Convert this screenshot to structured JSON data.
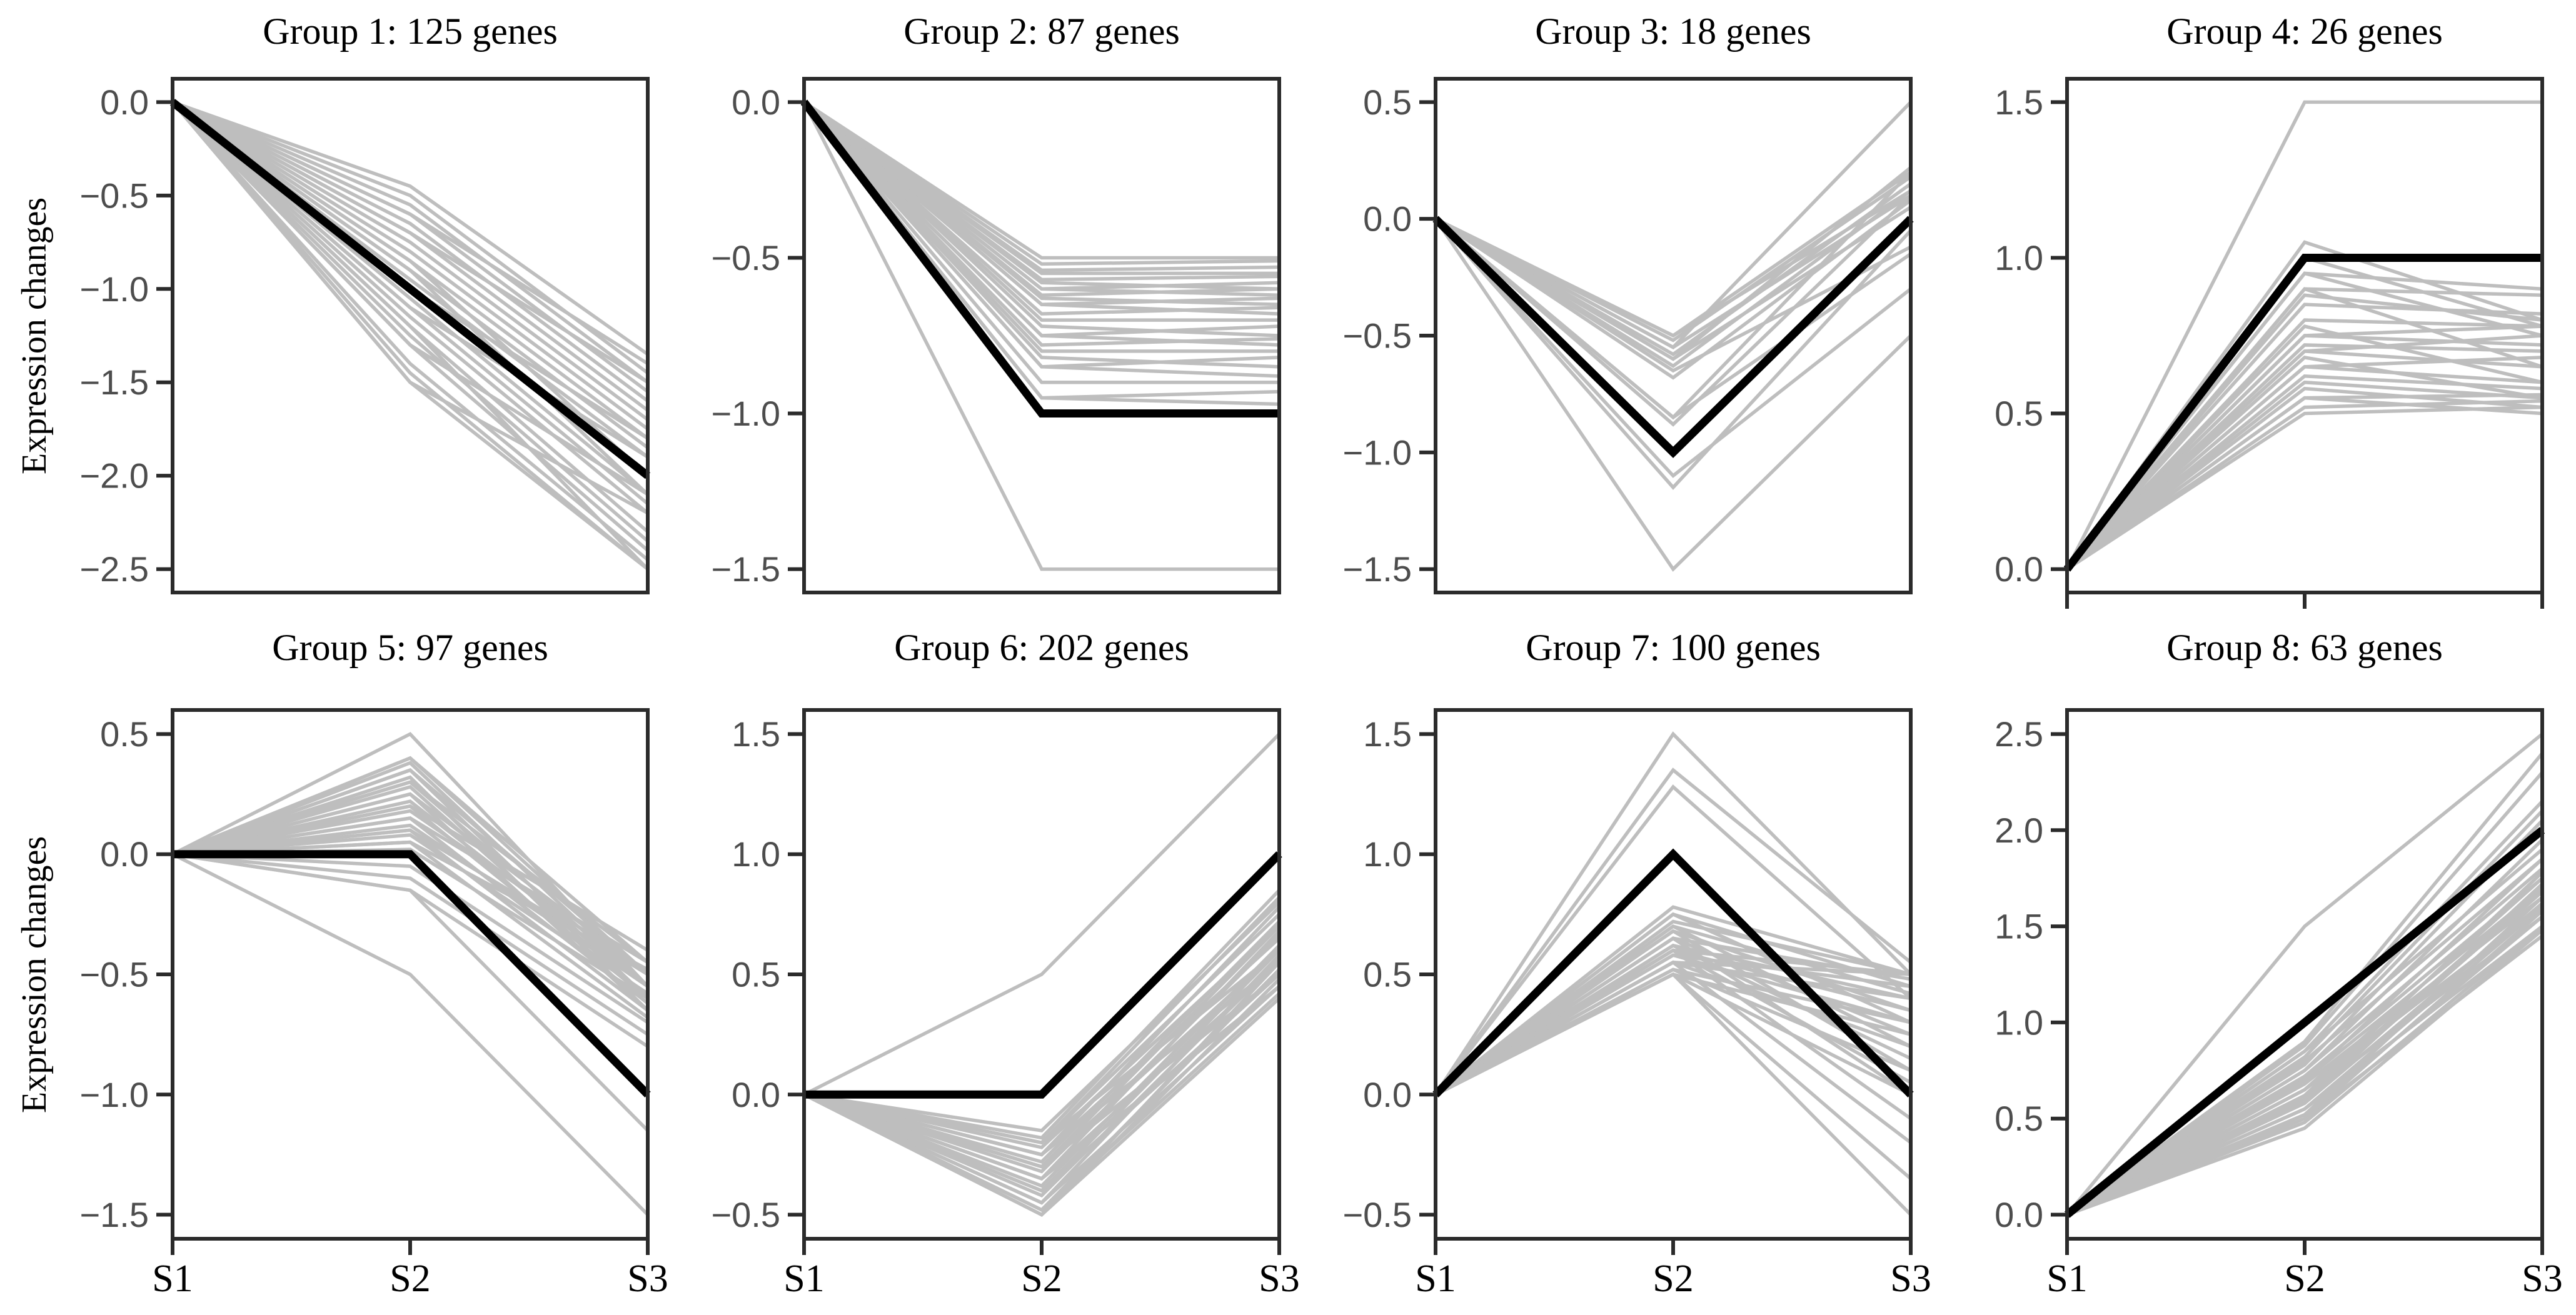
{
  "figure": {
    "ylabel": "Expression changes",
    "x_labels": [
      "S1",
      "S2",
      "S3"
    ],
    "colors": {
      "gene_line": "#BEBEBE",
      "medoid_line": "#000000",
      "axis": "#2B2B2B",
      "tick_label": "#4D4D4D",
      "text": "#000000",
      "background": "#FFFFFF"
    }
  },
  "chart_data": [
    {
      "type": "line",
      "title": "Group 1: 125 genes",
      "group": 1,
      "n_genes": 125,
      "categories": [
        "S1",
        "S2",
        "S3"
      ],
      "yticks": [
        0.0,
        -0.5,
        -1.0,
        -1.5,
        -2.0,
        -2.5
      ],
      "ylim": [
        -2.625,
        0.125
      ],
      "show_x_ticks": false,
      "medoid": [
        0,
        -1.0,
        -2.0
      ],
      "genes": [
        [
          0,
          -0.45,
          -1.35
        ],
        [
          0,
          -0.5,
          -1.45
        ],
        [
          0,
          -0.55,
          -1.5
        ],
        [
          0,
          -0.6,
          -1.55
        ],
        [
          0,
          -0.6,
          -1.4
        ],
        [
          0,
          -0.65,
          -1.6
        ],
        [
          0,
          -0.7,
          -1.65
        ],
        [
          0,
          -0.7,
          -1.5
        ],
        [
          0,
          -0.75,
          -1.7
        ],
        [
          0,
          -0.8,
          -1.75
        ],
        [
          0,
          -0.85,
          -1.8
        ],
        [
          0,
          -0.85,
          -2.0
        ],
        [
          0,
          -0.9,
          -1.85
        ],
        [
          0,
          -0.9,
          -2.1
        ],
        [
          0,
          -0.95,
          -1.9
        ],
        [
          0,
          -1.0,
          -2.0
        ],
        [
          0,
          -1.0,
          -1.8
        ],
        [
          0,
          -1.05,
          -2.1
        ],
        [
          0,
          -1.1,
          -2.15
        ],
        [
          0,
          -1.1,
          -1.9
        ],
        [
          0,
          -1.15,
          -2.2
        ],
        [
          0,
          -1.2,
          -2.3
        ],
        [
          0,
          -1.2,
          -2.5
        ],
        [
          0,
          -1.25,
          -2.35
        ],
        [
          0,
          -1.3,
          -2.4
        ],
        [
          0,
          -1.3,
          -2.1
        ],
        [
          0,
          -1.4,
          -2.45
        ],
        [
          0,
          -1.45,
          -2.5
        ],
        [
          0,
          -1.5,
          -2.5
        ],
        [
          0,
          -1.5,
          -2.2
        ]
      ]
    },
    {
      "type": "line",
      "title": "Group 2: 87 genes",
      "group": 2,
      "n_genes": 87,
      "categories": [
        "S1",
        "S2",
        "S3"
      ],
      "yticks": [
        0.0,
        -0.5,
        -1.0,
        -1.5
      ],
      "ylim": [
        -1.575,
        0.075
      ],
      "show_x_ticks": false,
      "medoid": [
        0,
        -1.0,
        -1.0
      ],
      "genes": [
        [
          0,
          -0.5,
          -0.5
        ],
        [
          0,
          -0.52,
          -0.51
        ],
        [
          0,
          -0.54,
          -0.53
        ],
        [
          0,
          -0.55,
          -0.55
        ],
        [
          0,
          -0.57,
          -0.56
        ],
        [
          0,
          -0.58,
          -0.6
        ],
        [
          0,
          -0.6,
          -0.58
        ],
        [
          0,
          -0.6,
          -0.62
        ],
        [
          0,
          -0.62,
          -0.6
        ],
        [
          0,
          -0.63,
          -0.65
        ],
        [
          0,
          -0.65,
          -0.63
        ],
        [
          0,
          -0.65,
          -0.68
        ],
        [
          0,
          -0.68,
          -0.66
        ],
        [
          0,
          -0.7,
          -0.7
        ],
        [
          0,
          -0.72,
          -0.75
        ],
        [
          0,
          -0.75,
          -0.72
        ],
        [
          0,
          -0.75,
          -0.78
        ],
        [
          0,
          -0.78,
          -0.76
        ],
        [
          0,
          -0.8,
          -0.8
        ],
        [
          0,
          -0.82,
          -0.85
        ],
        [
          0,
          -0.85,
          -0.82
        ],
        [
          0,
          -0.85,
          -0.88
        ],
        [
          0,
          -0.9,
          -0.9
        ],
        [
          0,
          -0.95,
          -0.93
        ],
        [
          0,
          -0.95,
          -0.97
        ],
        [
          0,
          -1.5,
          -1.5
        ]
      ]
    },
    {
      "type": "line",
      "title": "Group 3: 18 genes",
      "group": 3,
      "n_genes": 18,
      "categories": [
        "S1",
        "S2",
        "S3"
      ],
      "yticks": [
        0.5,
        0.0,
        -0.5,
        -1.0,
        -1.5
      ],
      "ylim": [
        -1.6,
        0.6
      ],
      "show_x_ticks": false,
      "medoid": [
        0,
        -1.0,
        0.0
      ],
      "genes": [
        [
          0,
          -0.5,
          0.2
        ],
        [
          0,
          -0.5,
          0.12
        ],
        [
          0,
          -0.52,
          0.18
        ],
        [
          0,
          -0.55,
          0.5
        ],
        [
          0,
          -0.55,
          0.1
        ],
        [
          0,
          -0.58,
          0.15
        ],
        [
          0,
          -0.6,
          0.05
        ],
        [
          0,
          -0.6,
          0.22
        ],
        [
          0,
          -0.63,
          0.12
        ],
        [
          0,
          -0.65,
          -0.12
        ],
        [
          0,
          -0.68,
          0.08
        ],
        [
          0,
          -0.85,
          0.2
        ],
        [
          0,
          -0.85,
          -0.15
        ],
        [
          0,
          -0.88,
          0.1
        ],
        [
          0,
          -1.1,
          -0.3
        ],
        [
          0,
          -1.15,
          -0.05
        ],
        [
          0,
          -1.5,
          -0.5
        ]
      ]
    },
    {
      "type": "line",
      "title": "Group 4: 26 genes",
      "group": 4,
      "n_genes": 26,
      "categories": [
        "S1",
        "S2",
        "S3"
      ],
      "yticks": [
        0.0,
        0.5,
        1.0,
        1.5
      ],
      "ylim": [
        -0.075,
        1.575
      ],
      "show_x_ticks": true,
      "medoid": [
        0,
        1.0,
        1.0
      ],
      "genes": [
        [
          0,
          1.5,
          1.5
        ],
        [
          0,
          1.05,
          0.8
        ],
        [
          0,
          1.0,
          0.78
        ],
        [
          0,
          0.95,
          0.9
        ],
        [
          0,
          0.95,
          0.75
        ],
        [
          0,
          0.9,
          0.88
        ],
        [
          0,
          0.9,
          0.65
        ],
        [
          0,
          0.88,
          0.8
        ],
        [
          0,
          0.85,
          0.82
        ],
        [
          0,
          0.8,
          0.78
        ],
        [
          0,
          0.78,
          0.6
        ],
        [
          0,
          0.75,
          0.72
        ],
        [
          0,
          0.75,
          0.78
        ],
        [
          0,
          0.72,
          0.7
        ],
        [
          0,
          0.7,
          0.65
        ],
        [
          0,
          0.7,
          0.75
        ],
        [
          0,
          0.68,
          0.55
        ],
        [
          0,
          0.65,
          0.68
        ],
        [
          0,
          0.65,
          0.6
        ],
        [
          0,
          0.62,
          0.58
        ],
        [
          0,
          0.6,
          0.55
        ],
        [
          0,
          0.58,
          0.52
        ],
        [
          0,
          0.55,
          0.56
        ],
        [
          0,
          0.55,
          0.5
        ],
        [
          0,
          0.52,
          0.54
        ],
        [
          0,
          0.5,
          0.52
        ]
      ]
    },
    {
      "type": "line",
      "title": "Group 5: 97 genes",
      "group": 5,
      "n_genes": 97,
      "categories": [
        "S1",
        "S2",
        "S3"
      ],
      "yticks": [
        0.5,
        0.0,
        -0.5,
        -1.0,
        -1.5
      ],
      "ylim": [
        -1.6,
        0.6
      ],
      "show_x_ticks": true,
      "medoid": [
        0,
        0.0,
        -1.0
      ],
      "genes": [
        [
          0,
          0.5,
          -0.55
        ],
        [
          0,
          0.4,
          -0.5
        ],
        [
          0,
          0.4,
          -0.45
        ],
        [
          0,
          0.38,
          -0.55
        ],
        [
          0,
          0.35,
          -0.6
        ],
        [
          0,
          0.35,
          -0.5
        ],
        [
          0,
          0.32,
          -0.65
        ],
        [
          0,
          0.3,
          -0.45
        ],
        [
          0,
          0.3,
          -0.55
        ],
        [
          0,
          0.28,
          -0.6
        ],
        [
          0,
          0.25,
          -0.5
        ],
        [
          0,
          0.25,
          -0.65
        ],
        [
          0,
          0.22,
          -0.55
        ],
        [
          0,
          0.2,
          -0.4
        ],
        [
          0,
          0.2,
          -0.6
        ],
        [
          0,
          0.18,
          -0.5
        ],
        [
          0,
          0.15,
          -0.45
        ],
        [
          0,
          0.15,
          -0.62
        ],
        [
          0,
          0.12,
          -0.55
        ],
        [
          0,
          0.1,
          -0.5
        ],
        [
          0,
          0.1,
          -0.65
        ],
        [
          0,
          0.08,
          -0.58
        ],
        [
          0,
          0.05,
          -0.48
        ],
        [
          0,
          0.05,
          -0.68
        ],
        [
          0,
          0.02,
          -0.6
        ],
        [
          0,
          -0.05,
          -0.7
        ],
        [
          0,
          -0.1,
          -0.75
        ],
        [
          0,
          -0.15,
          -0.8
        ],
        [
          0,
          -0.15,
          -1.15
        ],
        [
          0,
          -0.5,
          -1.5
        ]
      ]
    },
    {
      "type": "line",
      "title": "Group 6: 202 genes",
      "group": 6,
      "n_genes": 202,
      "categories": [
        "S1",
        "S2",
        "S3"
      ],
      "yticks": [
        1.5,
        1.0,
        0.5,
        0.0,
        -0.5
      ],
      "ylim": [
        -0.6,
        1.6
      ],
      "show_x_ticks": true,
      "medoid": [
        0,
        0.0,
        1.0
      ],
      "genes": [
        [
          0,
          -0.15,
          0.8
        ],
        [
          0,
          -0.18,
          0.85
        ],
        [
          0,
          -0.2,
          0.75
        ],
        [
          0,
          -0.2,
          0.82
        ],
        [
          0,
          -0.22,
          0.7
        ],
        [
          0,
          -0.25,
          0.78
        ],
        [
          0,
          -0.25,
          0.65
        ],
        [
          0,
          -0.28,
          0.72
        ],
        [
          0,
          -0.3,
          0.6
        ],
        [
          0,
          -0.3,
          0.7
        ],
        [
          0,
          -0.32,
          0.66
        ],
        [
          0,
          -0.35,
          0.55
        ],
        [
          0,
          -0.35,
          0.68
        ],
        [
          0,
          -0.38,
          0.62
        ],
        [
          0,
          -0.4,
          0.5
        ],
        [
          0,
          -0.4,
          0.6
        ],
        [
          0,
          -0.42,
          0.56
        ],
        [
          0,
          -0.45,
          0.45
        ],
        [
          0,
          -0.45,
          0.58
        ],
        [
          0,
          -0.48,
          0.52
        ],
        [
          0,
          -0.5,
          0.4
        ],
        [
          0,
          -0.5,
          0.48
        ],
        [
          0,
          -0.5,
          0.55
        ],
        [
          0,
          -0.48,
          0.42
        ],
        [
          0,
          -0.35,
          0.45
        ],
        [
          0,
          -0.3,
          0.5
        ],
        [
          0,
          -0.25,
          0.55
        ],
        [
          0,
          -0.2,
          0.6
        ],
        [
          0,
          0.5,
          1.5
        ]
      ]
    },
    {
      "type": "line",
      "title": "Group 7: 100 genes",
      "group": 7,
      "n_genes": 100,
      "categories": [
        "S1",
        "S2",
        "S3"
      ],
      "yticks": [
        1.5,
        1.0,
        0.5,
        0.0,
        -0.5
      ],
      "ylim": [
        -0.6,
        1.6
      ],
      "show_x_ticks": true,
      "medoid": [
        0,
        1.0,
        0.0
      ],
      "genes": [
        [
          0,
          1.5,
          0.5
        ],
        [
          0,
          1.35,
          0.55
        ],
        [
          0,
          1.28,
          0.4
        ],
        [
          0,
          0.78,
          0.5
        ],
        [
          0,
          0.75,
          0.45
        ],
        [
          0,
          0.75,
          0.3
        ],
        [
          0,
          0.72,
          0.5
        ],
        [
          0,
          0.7,
          0.2
        ],
        [
          0,
          0.7,
          0.42
        ],
        [
          0,
          0.68,
          0.35
        ],
        [
          0,
          0.68,
          0.1
        ],
        [
          0,
          0.65,
          0.48
        ],
        [
          0,
          0.65,
          0.25
        ],
        [
          0,
          0.65,
          0.0
        ],
        [
          0,
          0.62,
          0.4
        ],
        [
          0,
          0.62,
          0.15
        ],
        [
          0,
          0.6,
          0.35
        ],
        [
          0,
          0.6,
          0.05
        ],
        [
          0,
          0.6,
          -0.1
        ],
        [
          0,
          0.58,
          0.3
        ],
        [
          0,
          0.58,
          0.45
        ],
        [
          0,
          0.55,
          0.2
        ],
        [
          0,
          0.55,
          -0.2
        ],
        [
          0,
          0.55,
          0.4
        ],
        [
          0,
          0.52,
          0.1
        ],
        [
          0,
          0.52,
          0.3
        ],
        [
          0,
          0.5,
          0.0
        ],
        [
          0,
          0.5,
          0.25
        ],
        [
          0,
          0.5,
          -0.35
        ],
        [
          0,
          0.5,
          -0.5
        ],
        [
          0,
          0.55,
          0.5
        ],
        [
          0,
          0.6,
          0.5
        ]
      ]
    },
    {
      "type": "line",
      "title": "Group 8: 63 genes",
      "group": 8,
      "n_genes": 63,
      "categories": [
        "S1",
        "S2",
        "S3"
      ],
      "yticks": [
        0.0,
        0.5,
        1.0,
        1.5,
        2.0,
        2.5
      ],
      "ylim": [
        -0.125,
        2.625
      ],
      "show_x_ticks": true,
      "medoid": [
        0,
        1.0,
        2.0
      ],
      "genes": [
        [
          0,
          1.5,
          2.5
        ],
        [
          0,
          0.9,
          2.4
        ],
        [
          0,
          0.88,
          2.3
        ],
        [
          0,
          0.85,
          2.15
        ],
        [
          0,
          0.85,
          1.9
        ],
        [
          0,
          0.82,
          2.1
        ],
        [
          0,
          0.8,
          1.85
        ],
        [
          0,
          0.78,
          2.05
        ],
        [
          0,
          0.75,
          1.8
        ],
        [
          0,
          0.75,
          1.95
        ],
        [
          0,
          0.72,
          1.75
        ],
        [
          0,
          0.7,
          1.7
        ],
        [
          0,
          0.7,
          1.85
        ],
        [
          0,
          0.68,
          1.65
        ],
        [
          0,
          0.65,
          1.6
        ],
        [
          0,
          0.65,
          1.75
        ],
        [
          0,
          0.62,
          1.7
        ],
        [
          0,
          0.6,
          1.55
        ],
        [
          0,
          0.6,
          1.68
        ],
        [
          0,
          0.58,
          1.62
        ],
        [
          0,
          0.55,
          1.5
        ],
        [
          0,
          0.55,
          1.6
        ],
        [
          0,
          0.52,
          1.55
        ],
        [
          0,
          0.5,
          1.45
        ],
        [
          0,
          0.5,
          1.58
        ],
        [
          0,
          0.48,
          1.5
        ],
        [
          0,
          0.45,
          1.48
        ],
        [
          0,
          0.52,
          1.65
        ],
        [
          0,
          0.58,
          1.72
        ],
        [
          0,
          0.62,
          1.78
        ]
      ]
    }
  ]
}
